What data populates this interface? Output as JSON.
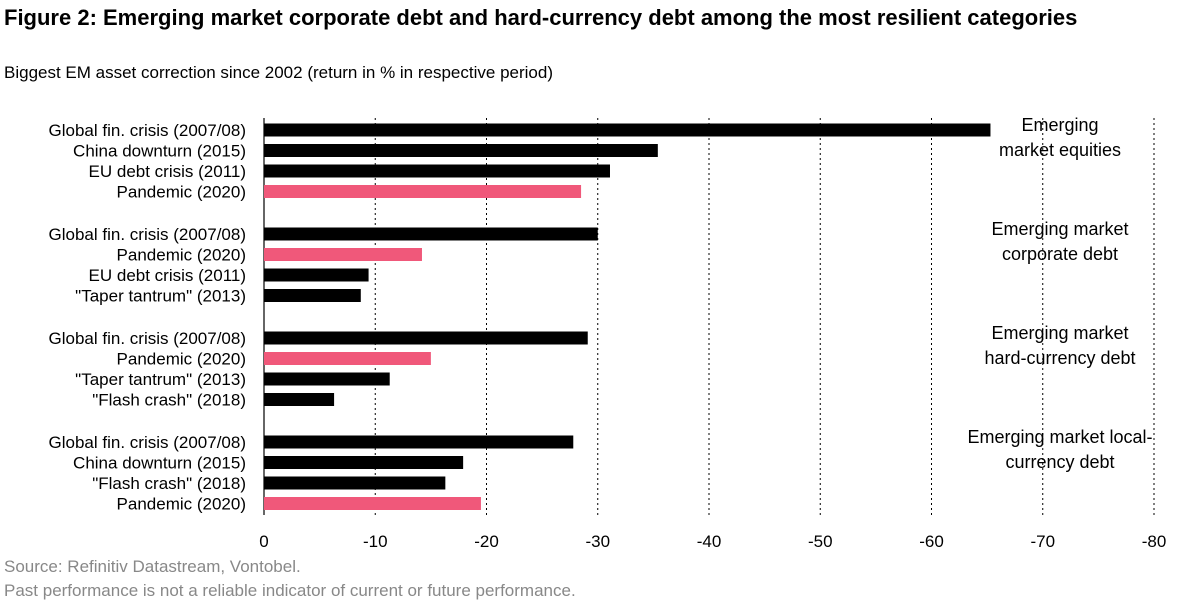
{
  "title": "Figure 2: Emerging market corporate debt and hard-currency debt among the most resilient categories",
  "subtitle": "Biggest EM asset correction since 2002 (return in % in respective period)",
  "source": "Source: Refinitiv Datastream, Vontobel.",
  "disclaimer": "Past performance is not a reliable indicator of current or future performance.",
  "colors": {
    "default_bar": "#000000",
    "highlight_bar": "#f0587a",
    "source_text": "#888888"
  },
  "chart_data": {
    "type": "bar",
    "orientation": "horizontal",
    "xlim": [
      0,
      -80
    ],
    "xticks": [
      0,
      -10,
      -20,
      -30,
      -40,
      -50,
      -60,
      -70,
      -80
    ],
    "xtick_labels": [
      "0",
      "-10",
      "-20",
      "-30",
      "-40",
      "-50",
      "-60",
      "-70",
      "-80"
    ],
    "grid": "vertical dotted",
    "groups": [
      {
        "label_lines": [
          "Emerging",
          "market equities"
        ],
        "bars": [
          {
            "category": "Global fin. crisis (2007/08)",
            "value": -65.3,
            "highlight": false
          },
          {
            "category": "China downturn (2015)",
            "value": -35.4,
            "highlight": false
          },
          {
            "category": "EU debt crisis (2011)",
            "value": -31.1,
            "highlight": false
          },
          {
            "category": "Pandemic (2020)",
            "value": -28.5,
            "highlight": true
          }
        ]
      },
      {
        "label_lines": [
          "Emerging market",
          "corporate debt"
        ],
        "bars": [
          {
            "category": "Global fin. crisis (2007/08)",
            "value": -30.0,
            "highlight": false
          },
          {
            "category": "Pandemic (2020)",
            "value": -14.2,
            "highlight": true
          },
          {
            "category": "EU debt crisis (2011)",
            "value": -9.4,
            "highlight": false
          },
          {
            "category": "\"Taper tantrum\" (2013)",
            "value": -8.7,
            "highlight": false
          }
        ]
      },
      {
        "label_lines": [
          "Emerging market",
          "hard-currency debt"
        ],
        "bars": [
          {
            "category": "Global fin. crisis (2007/08)",
            "value": -29.1,
            "highlight": false
          },
          {
            "category": "Pandemic (2020)",
            "value": -15.0,
            "highlight": true
          },
          {
            "category": "\"Taper tantrum\" (2013)",
            "value": -11.3,
            "highlight": false
          },
          {
            "category": "\"Flash crash\" (2018)",
            "value": -6.3,
            "highlight": false
          }
        ]
      },
      {
        "label_lines": [
          "Emerging market local-",
          "currency debt"
        ],
        "bars": [
          {
            "category": "Global fin. crisis (2007/08)",
            "value": -27.8,
            "highlight": false
          },
          {
            "category": "China downturn (2015)",
            "value": -17.9,
            "highlight": false
          },
          {
            "category": "\"Flash crash\" (2018)",
            "value": -16.3,
            "highlight": false
          },
          {
            "category": "Pandemic (2020)",
            "value": -19.5,
            "highlight": true
          }
        ]
      }
    ]
  }
}
